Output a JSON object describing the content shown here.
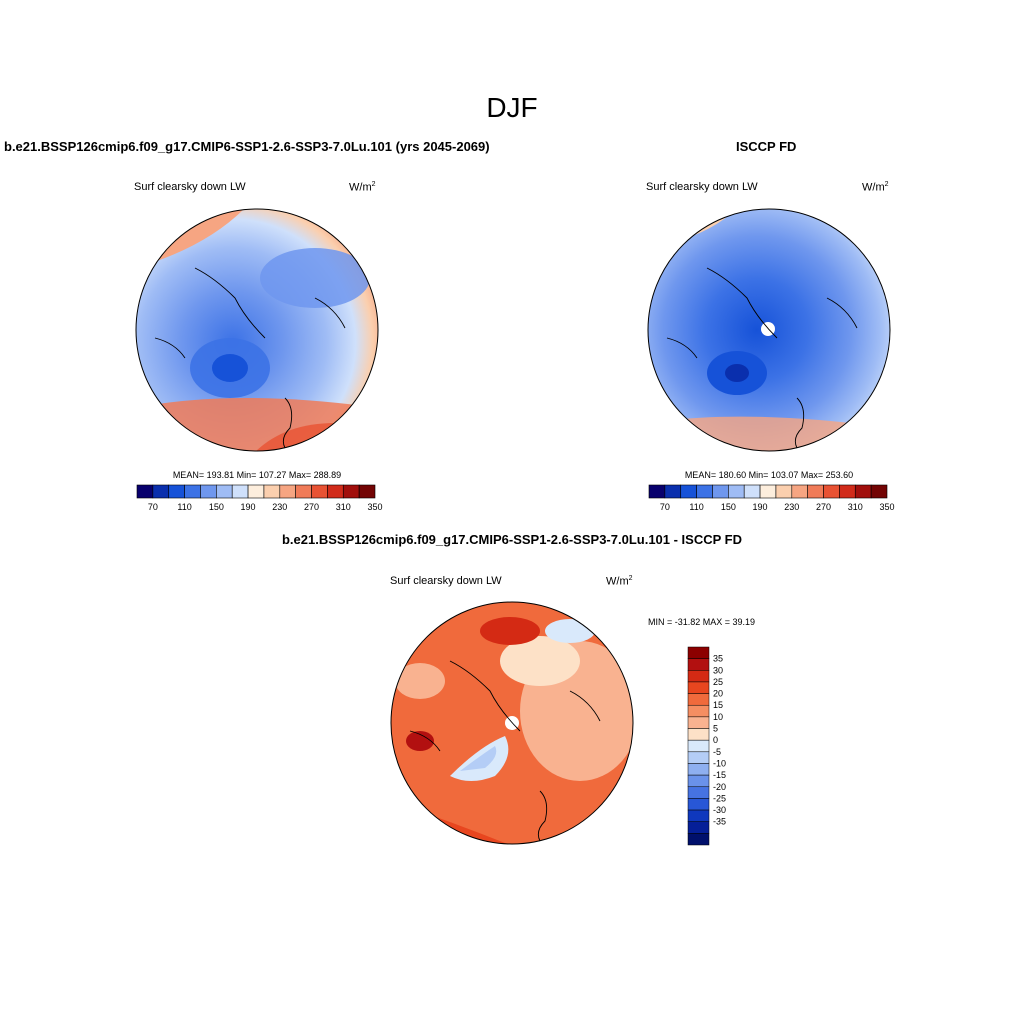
{
  "page": {
    "title": "DJF"
  },
  "panels": {
    "model": {
      "title": "b.e21.BSSP126cmip6.f09_g17.CMIP6-SSP1-2.6-SSP3-7.0Lu.101 (yrs 2045-2069)",
      "variable": "Surf clearsky down LW",
      "units_base": "W/m",
      "units_exp": "2",
      "stats": "MEAN= 193.81  Min= 107.27  Max= 288.89"
    },
    "obs": {
      "title": "ISCCP FD",
      "variable": "Surf clearsky down LW",
      "units_base": "W/m",
      "units_exp": "2",
      "stats": "MEAN= 180.60  Min= 103.07  Max= 253.60"
    },
    "diff": {
      "title": "b.e21.BSSP126cmip6.f09_g17.CMIP6-SSP1-2.6-SSP3-7.0Lu.101 - ISCCP FD",
      "variable": "Surf clearsky down LW",
      "units_base": "W/m",
      "units_exp": "2",
      "minmax": "MIN = -31.82 MAX =  39.19"
    }
  },
  "colorbars": {
    "abs_colors": [
      "#08006d",
      "#0a2fad",
      "#1652d8",
      "#3c72e6",
      "#6f97ee",
      "#9fbcf5",
      "#cfe0fb",
      "#fdeedd",
      "#fbcfae",
      "#f6a582",
      "#f07b58",
      "#e85233",
      "#d12b1a",
      "#a10f0c",
      "#730404"
    ],
    "abs_labels": [
      "70",
      "110",
      "150",
      "190",
      "230",
      "270",
      "310",
      "350"
    ],
    "diff_colors": [
      "#8c0000",
      "#b21010",
      "#d42a14",
      "#e8461f",
      "#f06a3c",
      "#f58e62",
      "#f9b290",
      "#fde1c7",
      "#d9e9fb",
      "#b4cdf6",
      "#8eaff0",
      "#6a92ea",
      "#4673e2",
      "#2857d6",
      "#0f38bd",
      "#051f98",
      "#00106c"
    ],
    "diff_labels": [
      "35",
      "30",
      "25",
      "20",
      "15",
      "10",
      "5",
      "0",
      "-5",
      "-10",
      "-15",
      "-20",
      "-25",
      "-30",
      "-35"
    ]
  }
}
